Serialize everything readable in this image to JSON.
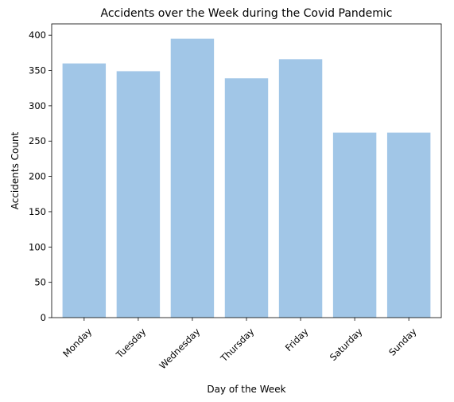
{
  "chart_data": {
    "type": "bar",
    "title": "Accidents over the Week during the Covid Pandemic",
    "xlabel": "Day of the Week",
    "ylabel": "Accidents Count",
    "categories": [
      "Monday",
      "Tuesday",
      "Wednesday",
      "Thursday",
      "Friday",
      "Saturday",
      "Sunday"
    ],
    "values": [
      360,
      349,
      395,
      339,
      366,
      262,
      262
    ],
    "ylim": [
      0,
      416
    ],
    "yticks": [
      0,
      50,
      100,
      150,
      200,
      250,
      300,
      350,
      400
    ],
    "bar_color": "#a1c6e7",
    "grid": false,
    "legend": "none"
  }
}
